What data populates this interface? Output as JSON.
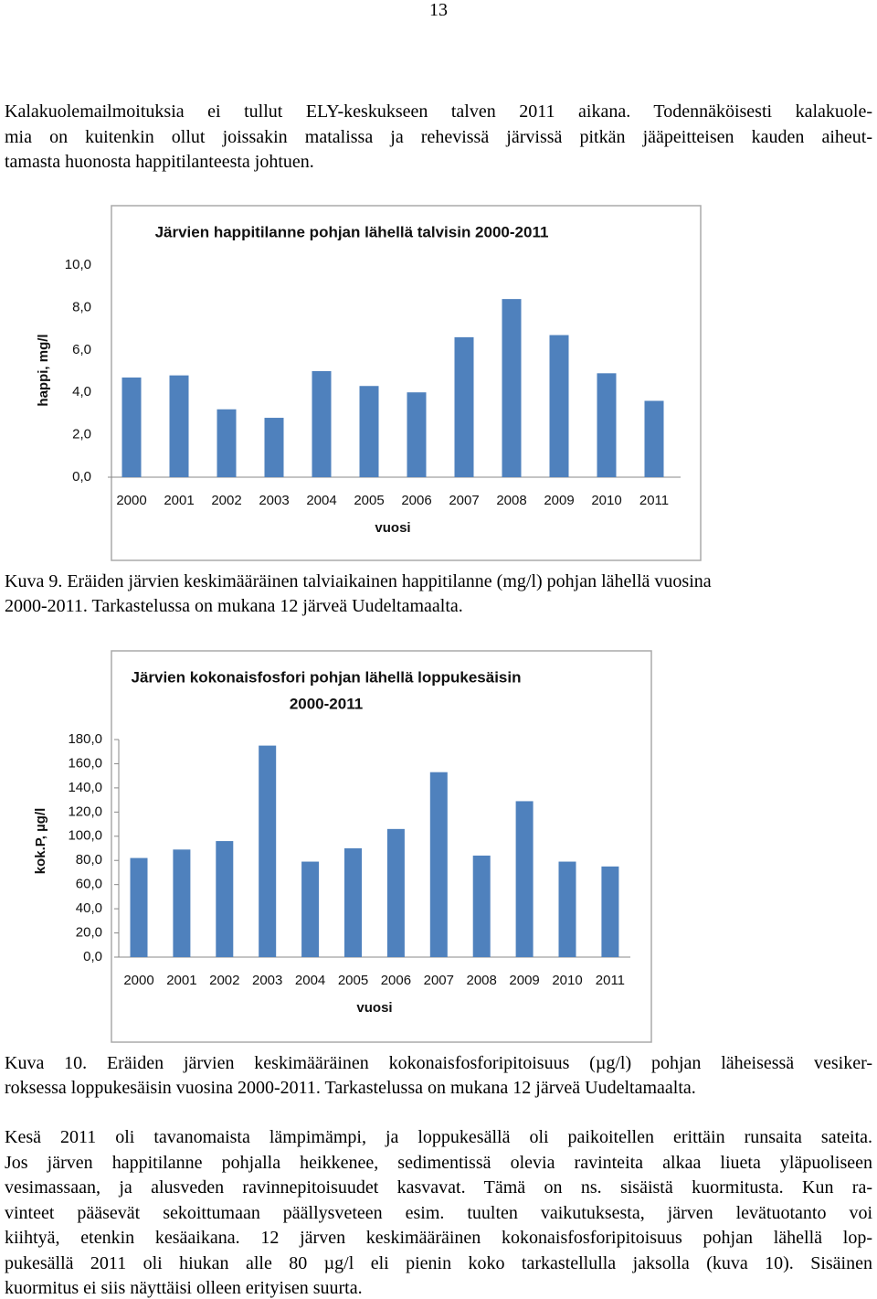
{
  "page_number": "13",
  "paragraph_1": [
    "Kalakuolemailmoituksia ei tullut ELY-keskukseen talven 2011 aikana. Todennäköisesti kalakuole-",
    "mia on kuitenkin ollut joissakin matalissa ja rehevissä järvissä pitkän jääpeitteisen kauden aiheut-",
    "tamasta huonosta happitilanteesta johtuen."
  ],
  "chart_data": [
    {
      "type": "bar",
      "title": [
        "Järvien happitilanne pohjan lähellä talvisin 2000-2011"
      ],
      "x_label": "vuosi",
      "y_label": "happi, mg/l",
      "categories": [
        "2000",
        "2001",
        "2002",
        "2003",
        "2004",
        "2005",
        "2006",
        "2007",
        "2008",
        "2009",
        "2010",
        "2011"
      ],
      "values": [
        4.7,
        4.8,
        3.2,
        2.8,
        5.0,
        4.3,
        4.0,
        6.6,
        8.4,
        6.7,
        4.9,
        3.6
      ],
      "color": "#4f81bd",
      "ylim": [
        0,
        10
      ],
      "yticks": [
        {
          "value": 0,
          "label": "0,0"
        },
        {
          "value": 2,
          "label": "2,0"
        },
        {
          "value": 4,
          "label": "4,0"
        },
        {
          "value": 6,
          "label": "6,0"
        },
        {
          "value": 8,
          "label": "8,0"
        },
        {
          "value": 10,
          "label": "10,0"
        }
      ]
    },
    {
      "type": "bar",
      "title": [
        "Järvien kokonaisfosfori pohjan lähellä loppukesäisin",
        "2000-2011"
      ],
      "x_label": "vuosi",
      "y_label": "kok.P, µg/l",
      "categories": [
        "2000",
        "2001",
        "2002",
        "2003",
        "2004",
        "2005",
        "2006",
        "2007",
        "2008",
        "2009",
        "2010",
        "2011"
      ],
      "values": [
        82,
        89,
        96,
        175,
        79,
        90,
        106,
        153,
        84,
        129,
        79,
        75
      ],
      "color": "#4f81bd",
      "ylim": [
        0,
        180
      ],
      "yticks": [
        {
          "value": 0,
          "label": "0,0"
        },
        {
          "value": 20,
          "label": "20,0"
        },
        {
          "value": 40,
          "label": "40,0"
        },
        {
          "value": 60,
          "label": "60,0"
        },
        {
          "value": 80,
          "label": "80,0"
        },
        {
          "value": 100,
          "label": "100,0"
        },
        {
          "value": 120,
          "label": "120,0"
        },
        {
          "value": 140,
          "label": "140,0"
        },
        {
          "value": 160,
          "label": "160,0"
        },
        {
          "value": 180,
          "label": "180,0"
        }
      ]
    }
  ],
  "caption_1": [
    "Kuva 9. Eräiden järvien keskimääräinen talviaikainen happitilanne (mg/l) pohjan lähellä vuosina",
    "2000-2011. Tarkastelussa on mukana 12 järveä Uudeltamaalta."
  ],
  "caption_2": [
    "Kuva 10. Eräiden järvien keskimääräinen kokonaisfosforipitoisuus (µg/l) pohjan läheisessä vesiker-",
    "roksessa loppukesäisin vuosina 2000-2011. Tarkastelussa on mukana 12 järveä Uudeltamaalta."
  ],
  "paragraph_2": [
    "Kesä 2011 oli tavanomaista lämpimämpi, ja loppukesällä oli paikoitellen erittäin runsaita sateita.",
    "Jos järven happitilanne pohjalla heikkenee, sedimentissä olevia ravinteita alkaa liueta yläpuoliseen",
    "vesimassaan, ja alusveden ravinnepitoisuudet kasvavat. Tämä on ns. sisäistä kuormitusta. Kun ra-",
    "vinteet pääsevät sekoittumaan päällysveteen esim. tuulten vaikutuksesta, järven levätuotanto voi",
    "kiihtyä, etenkin kesäaikana. 12 järven keskimääräinen kokonaisfosforipitoisuus pohjan lähellä lop-",
    "pukesällä 2011 oli hiukan alle 80 µg/l eli pienin koko tarkastellulla jaksolla (kuva 10). Sisäinen",
    "kuormitus ei siis näyttäisi olleen erityisen suurta."
  ]
}
